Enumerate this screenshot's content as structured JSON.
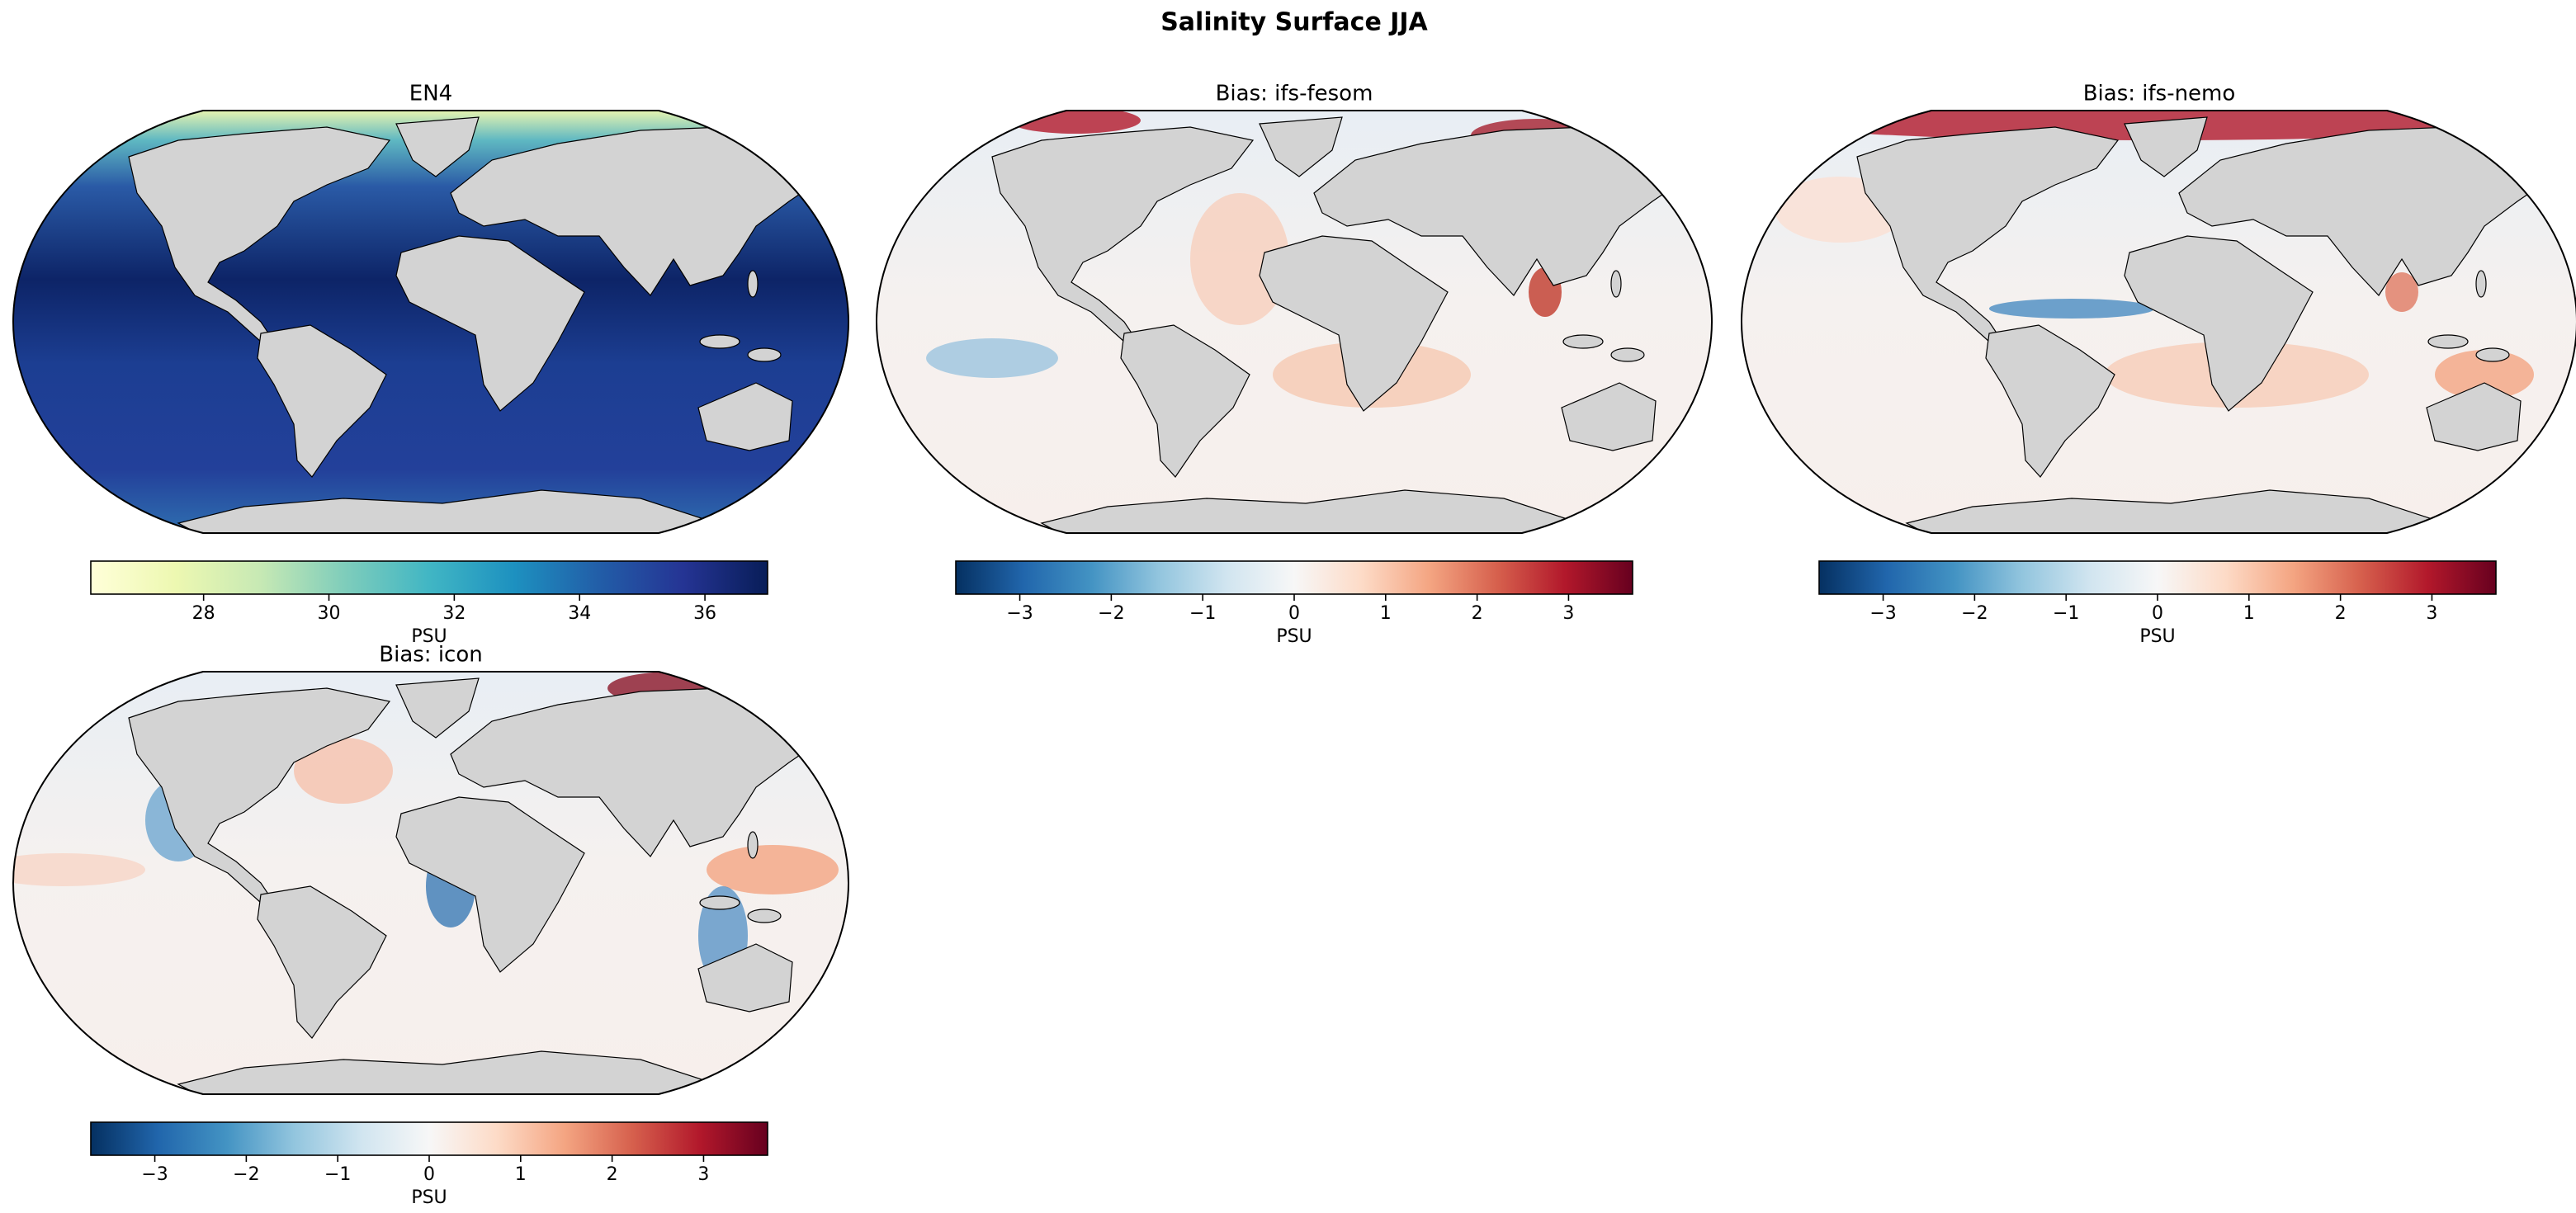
{
  "title": "Salinity Surface JJA",
  "panels": [
    {
      "title": "EN4",
      "colorbar": {
        "label": "PSU",
        "colormap": "YlGnBu",
        "lim": [
          26.2,
          37
        ],
        "ticks": [
          28,
          30,
          32,
          34,
          36
        ]
      }
    },
    {
      "title": "Bias: ifs-fesom",
      "colorbar": {
        "label": "PSU",
        "colormap": "RdBu_r",
        "lim": [
          -3.7,
          3.7
        ],
        "ticks": [
          {
            "value": -3,
            "label": "−3"
          },
          {
            "value": -2,
            "label": "−2"
          },
          {
            "value": -1,
            "label": "−1"
          },
          0,
          1,
          2,
          3
        ]
      }
    },
    {
      "title": "Bias: ifs-nemo",
      "colorbar": {
        "label": "PSU",
        "colormap": "RdBu_r",
        "lim": [
          -3.7,
          3.7
        ],
        "ticks": [
          {
            "value": -3,
            "label": "−3"
          },
          {
            "value": -2,
            "label": "−2"
          },
          {
            "value": -1,
            "label": "−1"
          },
          0,
          1,
          2,
          3
        ]
      }
    },
    {
      "title": "Bias: icon",
      "colorbar": {
        "label": "PSU",
        "colormap": "RdBu_r",
        "lim": [
          -3.7,
          3.7
        ],
        "ticks": [
          {
            "value": -3,
            "label": "−3"
          },
          {
            "value": -2,
            "label": "−2"
          },
          {
            "value": -1,
            "label": "−1"
          },
          0,
          1,
          2,
          3
        ]
      }
    }
  ]
}
